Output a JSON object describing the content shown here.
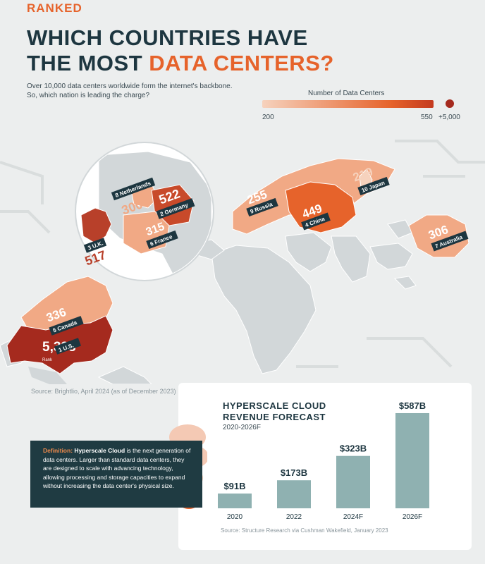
{
  "header": {
    "kicker": "RANKED",
    "title_line1": "WHICH COUNTRIES HAVE",
    "title_line2_a": "THE MOST ",
    "title_line2_b": "DATA CENTERS?",
    "subtitle": "Over 10,000 data centers worldwide form the internet's backbone. So, which nation is leading the charge?"
  },
  "legend": {
    "title": "Number of Data Centers",
    "min_label": "200",
    "max_label": "550",
    "dot_label": "+5,000",
    "colors": {
      "low": "#f6d2bd",
      "mid": "#e6632b",
      "high": "#c43a1f",
      "top": "#a52a1e"
    }
  },
  "map": {
    "rank_word": "Rank",
    "countries": [
      {
        "rank": 1,
        "rank_label": "1 U.S.",
        "name": "U.S.",
        "value": "5,388"
      },
      {
        "rank": 2,
        "rank_label": "2 Germany",
        "name": "Germany",
        "value": "522"
      },
      {
        "rank": 3,
        "rank_label": "3 U.K.",
        "name": "U.K.",
        "value": "517"
      },
      {
        "rank": 4,
        "rank_label": "4 China",
        "name": "China",
        "value": "449"
      },
      {
        "rank": 5,
        "rank_label": "5 Canada",
        "name": "Canada",
        "value": "336"
      },
      {
        "rank": 6,
        "rank_label": "6 France",
        "name": "France",
        "value": "315"
      },
      {
        "rank": 7,
        "rank_label": "7 Australia",
        "name": "Australia",
        "value": "306"
      },
      {
        "rank": 8,
        "rank_label": "8 Netherlands",
        "name": "Netherlands",
        "value": "300"
      },
      {
        "rank": 9,
        "rank_label": "9 Russia",
        "name": "Russia",
        "value": "255"
      },
      {
        "rank": 10,
        "rank_label": "10 Japan",
        "name": "Japan",
        "value": "219"
      }
    ],
    "source": "Source: Brightlio, April 2024 (as of December 2023)"
  },
  "forecast": {
    "title": "HYPERSCALE CLOUD REVENUE FORECAST",
    "subtitle": "2020-2026F",
    "source": "Source: Structure Research via Cushman Wakefield, January 2023",
    "bar_color": "#8fb1b1"
  },
  "definition": {
    "label": "Definition:",
    "term": "Hyperscale Cloud",
    "text": " is the next generation of data centers. Larger than standard data centers, they are designed to scale with advancing technology, allowing processing and storage capacities to expand without increasing the data center's physical size."
  },
  "chart_data": {
    "type": "bar",
    "title": "HYPERSCALE CLOUD REVENUE FORECAST",
    "subtitle": "2020-2026F",
    "categories": [
      "2020",
      "2022",
      "2024F",
      "2026F"
    ],
    "values": [
      91,
      173,
      323,
      587
    ],
    "value_labels": [
      "$91B",
      "$173B",
      "$323B",
      "$587B"
    ],
    "ylim": [
      0,
      600
    ]
  }
}
